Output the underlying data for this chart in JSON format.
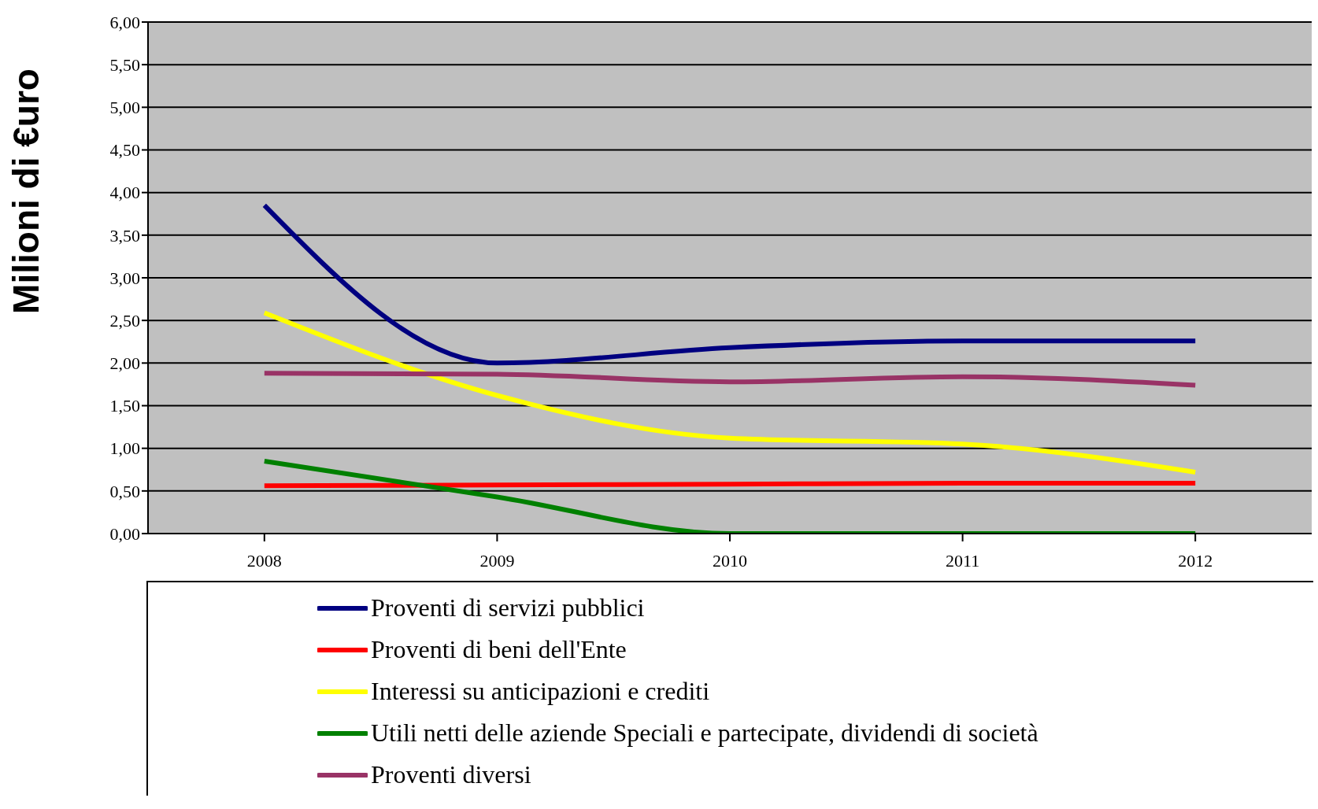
{
  "chart_data": {
    "type": "line",
    "ylabel": "Milioni di €uro",
    "categories": [
      "2008",
      "2009",
      "2010",
      "2011",
      "2012"
    ],
    "series": [
      {
        "name": "Proventi di servizi pubblici",
        "color": "#000080",
        "values": [
          3.85,
          2.0,
          2.18,
          2.26,
          2.26
        ]
      },
      {
        "name": "Proventi di beni dell'Ente",
        "color": "#ff0000",
        "values": [
          0.56,
          0.57,
          0.58,
          0.59,
          0.59
        ]
      },
      {
        "name": "Interessi su anticipazioni e crediti",
        "color": "#ffff00",
        "values": [
          2.59,
          1.62,
          1.12,
          1.05,
          0.72
        ]
      },
      {
        "name": "Utili netti delle aziende Speciali e partecipate, dividendi di società",
        "color": "#008000",
        "values": [
          0.85,
          0.43,
          0.0,
          0.0,
          0.0
        ]
      },
      {
        "name": "Proventi diversi",
        "color": "#993366",
        "values": [
          1.88,
          1.87,
          1.78,
          1.84,
          1.74
        ]
      }
    ],
    "ylim": [
      0,
      6
    ],
    "yticks": [
      {
        "value": 0,
        "label": "0,00"
      },
      {
        "value": 0.5,
        "label": "0,50"
      },
      {
        "value": 1,
        "label": "1,00"
      },
      {
        "value": 1.5,
        "label": "1,50"
      },
      {
        "value": 2,
        "label": "2,00"
      },
      {
        "value": 2.5,
        "label": "2,50"
      },
      {
        "value": 3,
        "label": "3,00"
      },
      {
        "value": 3.5,
        "label": "3,50"
      },
      {
        "value": 4,
        "label": "4,00"
      },
      {
        "value": 4.5,
        "label": "4,50"
      },
      {
        "value": 5,
        "label": "5,00"
      },
      {
        "value": 5.5,
        "label": "5,50"
      },
      {
        "value": 6,
        "label": "6,00"
      }
    ],
    "grid": "y",
    "legend": "bottom",
    "marker": "none",
    "line_style": "solid"
  }
}
